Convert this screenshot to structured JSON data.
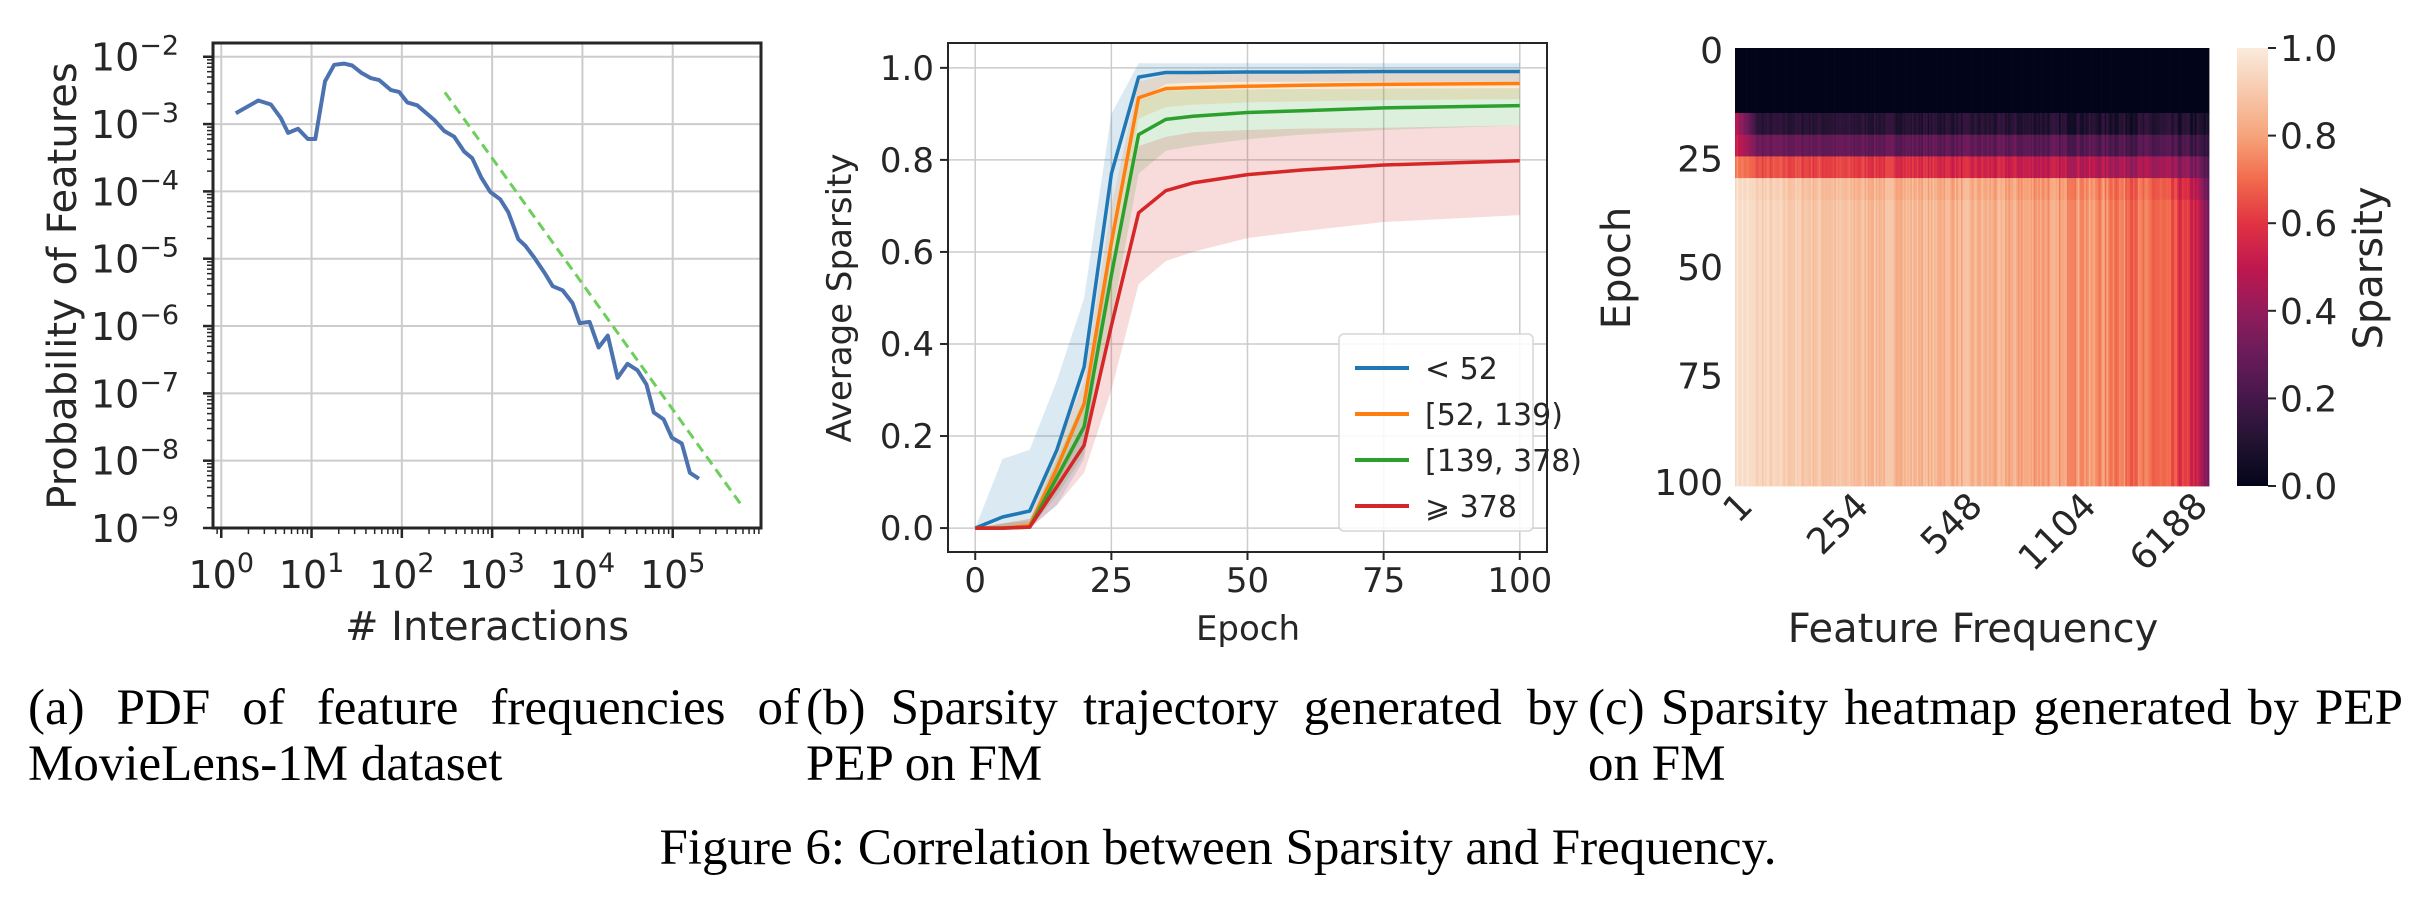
{
  "captions": {
    "a": "(a) PDF of feature frequencies of MovieLens-1M dataset",
    "b": "(b) Sparsity trajectory generated by PEP on FM",
    "c": "(c) Sparsity heatmap generated by PEP on FM",
    "figure": "Figure 6: Correlation between Sparsity and Frequency."
  },
  "chart_data": [
    {
      "type": "line",
      "xlabel": "# Interactions",
      "ylabel": "Probability of Features",
      "xscale": "log",
      "yscale": "log",
      "xlim": [
        0.81,
        950000
      ],
      "ylim": [
        1e-09,
        0.016
      ],
      "xticks": [
        1,
        10,
        100,
        1000,
        10000,
        100000
      ],
      "xtick_exponents": [
        "0",
        "1",
        "2",
        "3",
        "4",
        "5"
      ],
      "yticks": [
        1e-09,
        1e-08,
        1e-07,
        1e-06,
        1e-05,
        0.0001,
        0.001,
        0.01
      ],
      "ytick_exponents": [
        "−9",
        "−8",
        "−7",
        "−6",
        "−5",
        "−4",
        "−3",
        "−2"
      ],
      "tick_base": "10",
      "grid": true,
      "series": [
        {
          "style": "solid",
          "color": "#4c72b0",
          "x": [
            1.45,
            2.57,
            3.55,
            4.57,
            5.5,
            7.08,
            9.12,
            11.0,
            14.1,
            17.8,
            22.9,
            28.2,
            35.5,
            45.7,
            56.2,
            75.9,
            93.3,
            115,
            148,
            229,
            295,
            380,
            490,
            603,
            759,
            955,
            1230,
            1510,
            1950,
            2340,
            2950,
            3800,
            4680,
            6030,
            7760,
            9330,
            12000,
            15100,
            19100,
            24500,
            31600,
            40700,
            51300,
            61700,
            79400,
            97700,
            126000,
            155000,
            195000
          ],
          "y": [
            0.00145,
            0.00224,
            0.00195,
            0.00123,
            0.00074,
            0.00085,
            0.0006,
            0.0006,
            0.0043,
            0.0076,
            0.0079,
            0.0074,
            0.0058,
            0.0048,
            0.0045,
            0.0032,
            0.003,
            0.0021,
            0.0019,
            0.00115,
            0.00079,
            0.00065,
            0.00039,
            0.00031,
            0.00016,
            9.8e-05,
            7.6e-05,
            4.9e-05,
            1.95e-05,
            1.55e-05,
            1.02e-05,
            6.2e-06,
            3.9e-06,
            3.4e-06,
            2.2e-06,
            1.1e-06,
            1.15e-06,
            4.8e-07,
            7.2e-07,
            1.7e-07,
            2.75e-07,
            2.2e-07,
            1.35e-07,
            5.2e-08,
            4.1e-08,
            2.2e-08,
            1.8e-08,
            6.6e-09,
            5.4e-09
          ]
        },
        {
          "style": "dashed",
          "color": "#6ccf5a",
          "x": [
            300,
            575000
          ],
          "y": [
            0.00295,
            2.2e-09
          ]
        }
      ]
    },
    {
      "type": "line",
      "xlabel": "Epoch",
      "ylabel": "Average Sparsity",
      "xlim": [
        -5,
        105
      ],
      "ylim": [
        -0.052,
        1.054
      ],
      "xticks": [
        0,
        25,
        50,
        75,
        100
      ],
      "yticks": [
        0.0,
        0.2,
        0.4,
        0.6,
        0.8,
        1.0
      ],
      "ytick_labels": [
        "0.0",
        "0.2",
        "0.4",
        "0.6",
        "0.8",
        "1.0"
      ],
      "grid": true,
      "legend": "lower-right",
      "x": [
        0,
        5,
        10,
        15,
        20,
        25,
        30,
        35,
        40,
        50,
        60,
        75,
        100
      ],
      "series": [
        {
          "name": "< 52",
          "color": "#1f77b4",
          "values": [
            0,
            0.024,
            0.037,
            0.17,
            0.35,
            0.77,
            0.98,
            0.99,
            0.99,
            0.991,
            0.991,
            0.992,
            0.992
          ],
          "upper": [
            0,
            0.15,
            0.17,
            0.32,
            0.5,
            0.9,
            1.01,
            1.01,
            1.01,
            1.01,
            1.01,
            1.01,
            1.01
          ],
          "lower": [
            0,
            0,
            0,
            0.05,
            0.15,
            0.6,
            0.93,
            0.965,
            0.968,
            0.97,
            0.97,
            0.97,
            0.97
          ]
        },
        {
          "name": "[52, 139)",
          "color": "#ff7f0e",
          "values": [
            0,
            0,
            0.005,
            0.13,
            0.27,
            0.62,
            0.935,
            0.955,
            0.957,
            0.96,
            0.962,
            0.964,
            0.966
          ],
          "upper": [
            0,
            0.01,
            0.02,
            0.17,
            0.32,
            0.7,
            0.97,
            0.985,
            0.987,
            0.988,
            0.989,
            0.99,
            0.99
          ],
          "lower": [
            0,
            0,
            0,
            0.09,
            0.21,
            0.52,
            0.89,
            0.915,
            0.92,
            0.925,
            0.927,
            0.93,
            0.932
          ]
        },
        {
          "name": "[139, 378)",
          "color": "#2ca02c",
          "values": [
            0,
            0,
            0.002,
            0.11,
            0.22,
            0.55,
            0.855,
            0.888,
            0.895,
            0.903,
            0.907,
            0.913,
            0.918
          ],
          "upper": [
            0,
            0.01,
            0.015,
            0.15,
            0.28,
            0.64,
            0.93,
            0.95,
            0.952,
            0.953,
            0.954,
            0.955,
            0.956
          ],
          "lower": [
            0,
            0,
            0,
            0.07,
            0.16,
            0.45,
            0.77,
            0.82,
            0.83,
            0.845,
            0.855,
            0.865,
            0.875
          ]
        },
        {
          "name": "⩾ 378",
          "color": "#d62728",
          "values": [
            0,
            0,
            0.002,
            0.09,
            0.18,
            0.44,
            0.685,
            0.733,
            0.75,
            0.768,
            0.778,
            0.789,
            0.798
          ],
          "upper": [
            0,
            0.01,
            0.02,
            0.12,
            0.23,
            0.55,
            0.83,
            0.85,
            0.86,
            0.865,
            0.868,
            0.87,
            0.875
          ],
          "lower": [
            0,
            0,
            0,
            0.05,
            0.12,
            0.3,
            0.53,
            0.58,
            0.6,
            0.63,
            0.645,
            0.665,
            0.68
          ]
        }
      ]
    },
    {
      "type": "heatmap",
      "xlabel": "Feature Frequency",
      "ylabel": "Epoch",
      "colorbar_label": "Sparsity",
      "colormap": "rocket",
      "colormap_stops": [
        "#03051a",
        "#221331",
        "#45174a",
        "#6a1b5a",
        "#921c5b",
        "#c0184f",
        "#e13342",
        "#f26b4d",
        "#f6a47b",
        "#f7c9ac",
        "#faebdd"
      ],
      "vlim": [
        0.0,
        1.0
      ],
      "colorbar_ticks": [
        "0.0",
        "0.2",
        "0.4",
        "0.6",
        "0.8",
        "1.0"
      ],
      "xticklabels": [
        "1",
        "254",
        "548",
        "1104",
        "6188"
      ],
      "yticklabels": [
        "0",
        "25",
        "50",
        "75",
        "100"
      ],
      "epoch_range": [
        0,
        100
      ],
      "row_epoch_starts": [
        0,
        15,
        20,
        25,
        30,
        35
      ],
      "column_quantiles": [
        0,
        0.05,
        0.25,
        0.5,
        0.75,
        0.9,
        0.97,
        1
      ],
      "values": [
        [
          0.0,
          0.0,
          0.0,
          0.0,
          0.0,
          0.0,
          0.0,
          0.0
        ],
        [
          0.5,
          0.12,
          0.12,
          0.11,
          0.1,
          0.1,
          0.08,
          0.05
        ],
        [
          0.55,
          0.3,
          0.28,
          0.27,
          0.25,
          0.22,
          0.18,
          0.12
        ],
        [
          0.75,
          0.65,
          0.62,
          0.55,
          0.48,
          0.42,
          0.35,
          0.2
        ],
        [
          0.97,
          0.92,
          0.85,
          0.82,
          0.76,
          0.66,
          0.5,
          0.25
        ],
        [
          0.98,
          0.93,
          0.87,
          0.84,
          0.78,
          0.68,
          0.55,
          0.3
        ]
      ]
    }
  ]
}
